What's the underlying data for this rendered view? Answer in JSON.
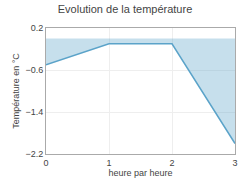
{
  "chart_data": {
    "type": "area",
    "title": "Evolution de la température",
    "xlabel": "heure par heure",
    "ylabel": "Température en °C",
    "x": [
      0,
      1,
      2,
      3
    ],
    "values": [
      -0.5,
      -0.1,
      -0.1,
      -2.0
    ],
    "color": "#5ba3c9",
    "xlim": [
      0,
      3
    ],
    "xticks": [
      0,
      1,
      2,
      3
    ],
    "ylim": [
      -2.2,
      0.2
    ],
    "yticks": [
      0.2,
      -0.6,
      -1.4,
      -2.2
    ],
    "grid": true
  }
}
